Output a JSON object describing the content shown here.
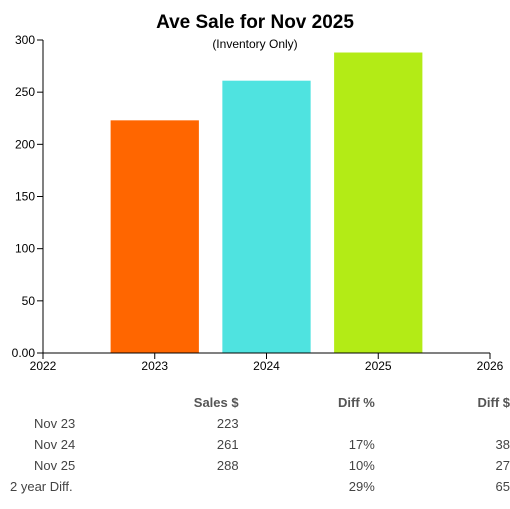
{
  "chart_data": {
    "type": "bar",
    "title": "Ave Sale for Nov 2025",
    "subtitle": "(Inventory Only)",
    "categories": [
      "2023",
      "2024",
      "2025"
    ],
    "values": [
      223,
      261,
      288
    ],
    "colors": [
      "#ff6600",
      "#4fe3e0",
      "#b3eb16"
    ],
    "x_ticks": [
      "2022",
      "2023",
      "2024",
      "2025",
      "2026"
    ],
    "y_ticks": [
      "0.00",
      "50",
      "100",
      "150",
      "200",
      "250",
      "300"
    ],
    "ylim": [
      0,
      300
    ],
    "grid": false
  },
  "table": {
    "headers": [
      "",
      "Sales $",
      "Diff %",
      "Diff $"
    ],
    "rows": [
      [
        "Nov 23",
        "223",
        "",
        ""
      ],
      [
        "Nov 24",
        "261",
        "17%",
        "38"
      ],
      [
        "Nov 25",
        "288",
        "10%",
        "27"
      ],
      [
        "2 year Diff.",
        "",
        "29%",
        "65"
      ]
    ]
  }
}
